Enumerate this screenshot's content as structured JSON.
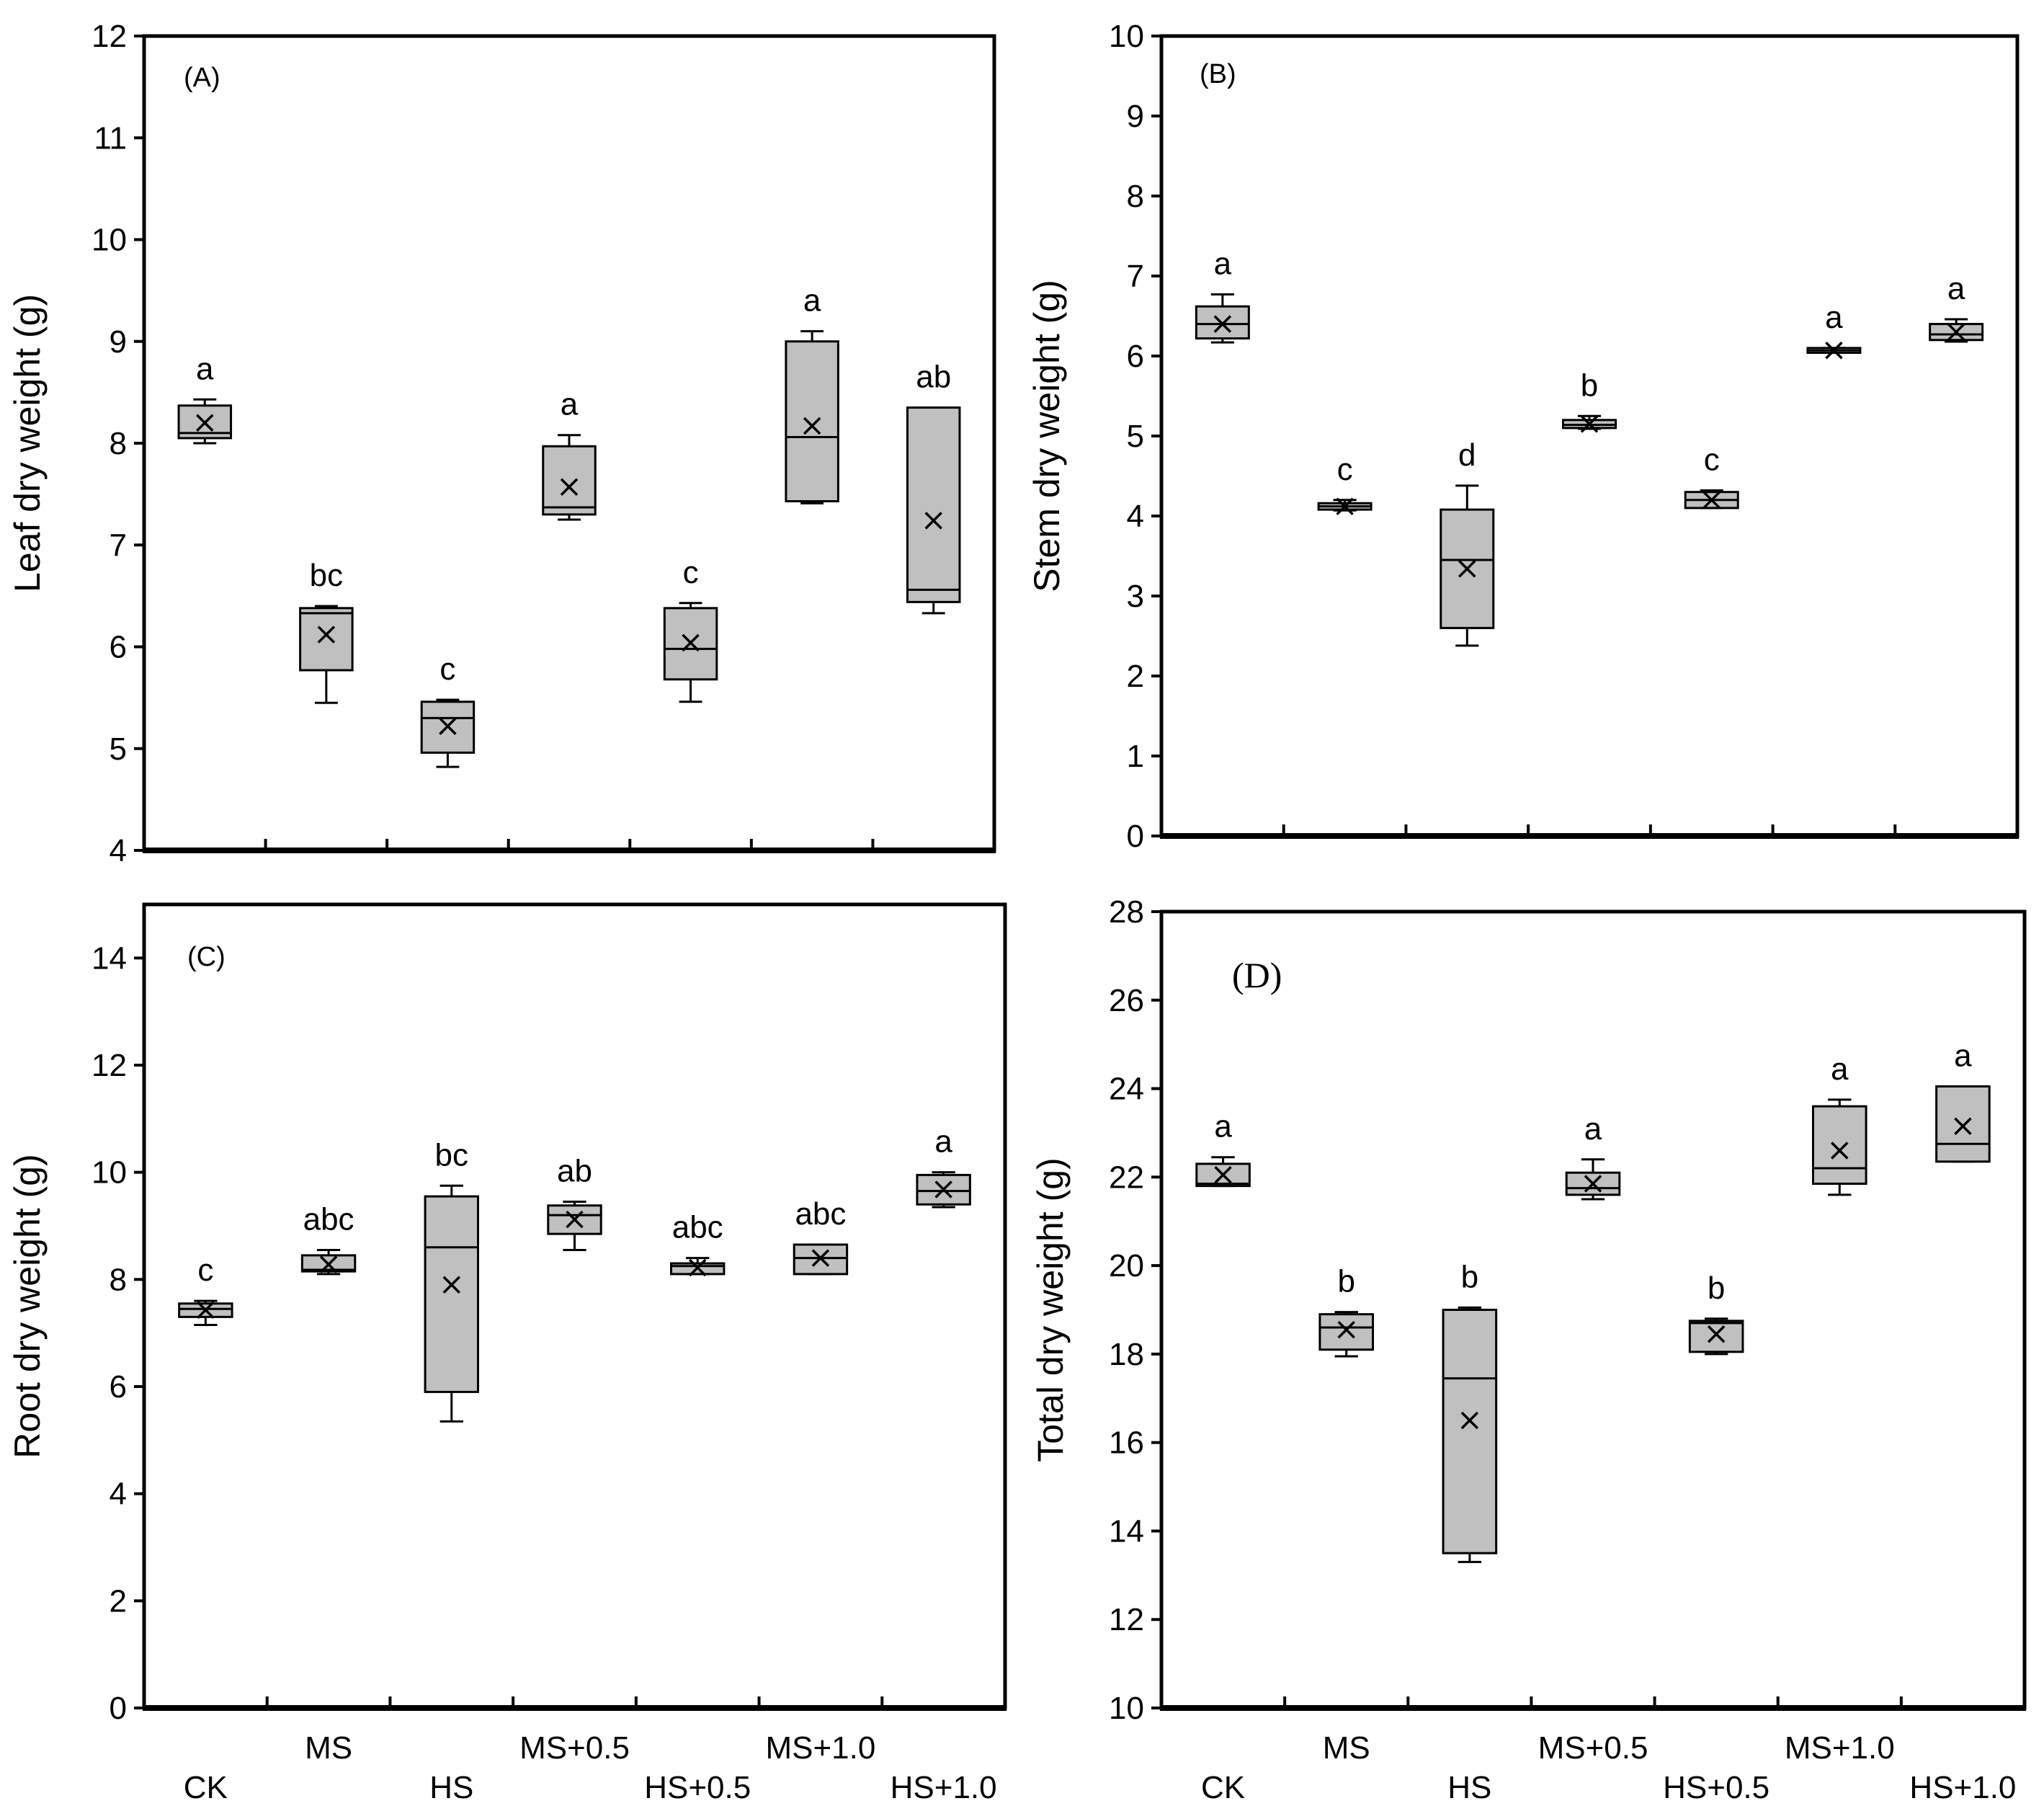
{
  "chart_data": [
    {
      "type": "box",
      "panel_label": "(A)",
      "ylabel": "Leaf dry weight (g)",
      "ylim": [
        4,
        12
      ],
      "yticks": [
        "4",
        "5",
        "6",
        "7",
        "8",
        "9",
        "10",
        "11",
        "12"
      ],
      "categories": [
        "CK",
        "MS",
        "HS",
        "MS+0.5",
        "HS+0.5",
        "MS+1.0",
        "HS+1.0"
      ],
      "boxes": [
        {
          "min": 8.0,
          "q1": 8.05,
          "median": 8.1,
          "q3": 8.37,
          "max": 8.43,
          "mean": 8.2,
          "letter": "a"
        },
        {
          "min": 5.45,
          "q1": 5.77,
          "median": 6.33,
          "q3": 6.38,
          "max": 6.4,
          "mean": 6.12,
          "letter": "bc"
        },
        {
          "min": 4.82,
          "q1": 4.96,
          "median": 5.3,
          "q3": 5.46,
          "max": 5.48,
          "mean": 5.22,
          "letter": "c"
        },
        {
          "min": 7.25,
          "q1": 7.3,
          "median": 7.37,
          "q3": 7.97,
          "max": 8.08,
          "mean": 7.57,
          "letter": "a"
        },
        {
          "min": 5.46,
          "q1": 5.68,
          "median": 5.98,
          "q3": 6.38,
          "max": 6.43,
          "mean": 6.04,
          "letter": "c"
        },
        {
          "min": 7.41,
          "q1": 7.43,
          "median": 8.06,
          "q3": 9.0,
          "max": 9.1,
          "mean": 8.17,
          "letter": "a"
        },
        {
          "min": 6.33,
          "q1": 6.44,
          "median": 6.56,
          "q3": 8.35,
          "max": 8.35,
          "mean": 7.24,
          "letter": "ab"
        }
      ]
    },
    {
      "type": "box",
      "panel_label": "(B)",
      "ylabel": "Stem dry weight (g)",
      "ylim": [
        0,
        10
      ],
      "yticks": [
        "0",
        "1",
        "2",
        "3",
        "4",
        "5",
        "6",
        "7",
        "8",
        "9",
        "10"
      ],
      "categories": [
        "CK",
        "MS",
        "HS",
        "MS+0.5",
        "HS+0.5",
        "MS+1.0",
        "HS+1.0"
      ],
      "boxes": [
        {
          "min": 6.17,
          "q1": 6.22,
          "median": 6.4,
          "q3": 6.62,
          "max": 6.77,
          "mean": 6.4,
          "letter": "a"
        },
        {
          "min": 4.07,
          "q1": 4.08,
          "median": 4.12,
          "q3": 4.16,
          "max": 4.2,
          "mean": 4.12,
          "letter": "c"
        },
        {
          "min": 2.38,
          "q1": 2.6,
          "median": 3.45,
          "q3": 4.08,
          "max": 4.38,
          "mean": 3.34,
          "letter": "d"
        },
        {
          "min": 5.09,
          "q1": 5.1,
          "median": 5.14,
          "q3": 5.2,
          "max": 5.25,
          "mean": 5.15,
          "letter": "b"
        },
        {
          "min": 4.1,
          "q1": 4.1,
          "median": 4.2,
          "q3": 4.3,
          "max": 4.32,
          "mean": 4.2,
          "letter": "c"
        },
        {
          "min": 6.04,
          "q1": 6.04,
          "median": 6.07,
          "q3": 6.1,
          "max": 6.1,
          "mean": 6.07,
          "letter": "a"
        },
        {
          "min": 6.18,
          "q1": 6.2,
          "median": 6.27,
          "q3": 6.4,
          "max": 6.46,
          "mean": 6.3,
          "letter": "a"
        }
      ]
    },
    {
      "type": "box",
      "panel_label": "(C)",
      "ylabel": "Root dry weight (g)",
      "ylim": [
        0,
        15
      ],
      "yticks": [
        "0",
        "2",
        "4",
        "6",
        "8",
        "10",
        "12",
        "14"
      ],
      "categories": [
        "CK",
        "MS",
        "HS",
        "MS+0.5",
        "HS+0.5",
        "MS+1.0",
        "HS+1.0"
      ],
      "boxes": [
        {
          "min": 7.15,
          "q1": 7.3,
          "median": 7.45,
          "q3": 7.55,
          "max": 7.6,
          "mean": 7.43,
          "letter": "c"
        },
        {
          "min": 8.1,
          "q1": 8.15,
          "median": 8.18,
          "q3": 8.45,
          "max": 8.55,
          "mean": 8.28,
          "letter": "abc"
        },
        {
          "min": 5.35,
          "q1": 5.9,
          "median": 8.6,
          "q3": 9.55,
          "max": 9.75,
          "mean": 7.9,
          "letter": "bc"
        },
        {
          "min": 8.55,
          "q1": 8.85,
          "median": 9.2,
          "q3": 9.38,
          "max": 9.45,
          "mean": 9.12,
          "letter": "ab"
        },
        {
          "min": 8.1,
          "q1": 8.1,
          "median": 8.25,
          "q3": 8.3,
          "max": 8.4,
          "mean": 8.22,
          "letter": "abc"
        },
        {
          "min": 8.1,
          "q1": 8.1,
          "median": 8.4,
          "q3": 8.65,
          "max": 8.65,
          "mean": 8.4,
          "letter": "abc"
        },
        {
          "min": 9.35,
          "q1": 9.4,
          "median": 9.65,
          "q3": 9.95,
          "max": 10.0,
          "mean": 9.68,
          "letter": "a"
        }
      ]
    },
    {
      "type": "box",
      "panel_label": "(D)",
      "ylabel": "Total dry weight (g)",
      "ylim": [
        10,
        28
      ],
      "yticks": [
        "10",
        "12",
        "14",
        "16",
        "18",
        "20",
        "22",
        "24",
        "26",
        "28"
      ],
      "categories": [
        "CK",
        "MS",
        "HS",
        "MS+0.5",
        "HS+0.5",
        "MS+1.0",
        "HS+1.0"
      ],
      "boxes": [
        {
          "min": 21.8,
          "q1": 21.8,
          "median": 21.85,
          "q3": 22.3,
          "max": 22.45,
          "mean": 22.05,
          "letter": "a"
        },
        {
          "min": 17.95,
          "q1": 18.1,
          "median": 18.6,
          "q3": 18.9,
          "max": 18.95,
          "mean": 18.55,
          "letter": "b"
        },
        {
          "min": 13.3,
          "q1": 13.5,
          "median": 17.45,
          "q3": 19.0,
          "max": 19.05,
          "mean": 16.5,
          "letter": "b"
        },
        {
          "min": 21.5,
          "q1": 21.6,
          "median": 21.75,
          "q3": 22.1,
          "max": 22.4,
          "mean": 21.85,
          "letter": "a"
        },
        {
          "min": 18.0,
          "q1": 18.05,
          "median": 18.7,
          "q3": 18.75,
          "max": 18.8,
          "mean": 18.45,
          "letter": "b"
        },
        {
          "min": 21.6,
          "q1": 21.85,
          "median": 22.2,
          "q3": 23.6,
          "max": 23.75,
          "mean": 22.6,
          "letter": "a"
        },
        {
          "min": 22.35,
          "q1": 22.35,
          "median": 22.75,
          "q3": 24.05,
          "max": 24.05,
          "mean": 23.15,
          "letter": "a"
        }
      ]
    }
  ]
}
